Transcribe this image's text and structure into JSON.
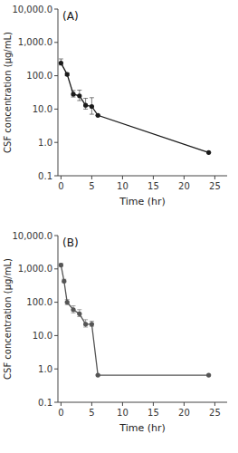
{
  "chart_data": [
    {
      "type": "line",
      "annotations": [
        "(A)"
      ],
      "xlabel": "Time (hr)",
      "ylabel": "CSF concentration (μg/mL)",
      "x": [
        0,
        1,
        2,
        3,
        4,
        5,
        6,
        24
      ],
      "series": [
        {
          "color": "#1a1a1a",
          "marker": "circle",
          "line_style": "solid",
          "values": [
            240,
            110,
            28,
            25,
            13,
            12,
            6.5,
            0.5
          ],
          "error_low": [
            30,
            10,
            5,
            7,
            3,
            5,
            0,
            0
          ],
          "error_high": [
            80,
            12,
            8,
            12,
            8,
            10,
            0,
            0
          ]
        }
      ],
      "log": "y",
      "grid": false,
      "xlim": [
        -0.5,
        27
      ],
      "xticks": [
        0,
        5,
        10,
        15,
        20,
        25
      ],
      "ylim": [
        0.1,
        10000
      ],
      "yticks": [
        0.1,
        {
          "value": 1.0,
          "label": "1.0"
        },
        {
          "value": 10.0,
          "label": "10.0"
        },
        {
          "value": 100.0,
          "label": "100.0"
        },
        {
          "value": 1000.0,
          "label": "1,000.0"
        },
        {
          "value": 10000.0,
          "label": "10,000.0"
        }
      ]
    },
    {
      "type": "line",
      "annotations": [
        "(B)"
      ],
      "xlabel": "Time (hr)",
      "ylabel": "CSF concentration (μg/mL)",
      "x": [
        0,
        0.5,
        1,
        2,
        3,
        4,
        5,
        6,
        24
      ],
      "series": [
        {
          "color": "#555555",
          "marker": "circle",
          "line_style": "solid",
          "values": [
            1300,
            430,
            100,
            60,
            45,
            22,
            22,
            0.65,
            0.65
          ],
          "error_low": [
            100,
            40,
            15,
            12,
            8,
            4,
            3,
            0,
            0
          ],
          "error_high": [
            150,
            60,
            20,
            18,
            15,
            8,
            5,
            0,
            0
          ]
        }
      ],
      "log": "y",
      "grid": false,
      "xlim": [
        -0.5,
        27
      ],
      "xticks": [
        0,
        5,
        10,
        15,
        20,
        25
      ],
      "ylim": [
        0.1,
        10000
      ],
      "yticks": [
        0.1,
        {
          "value": 1.0,
          "label": "1.0"
        },
        {
          "value": 10.0,
          "label": "10.0"
        },
        {
          "value": 100.0,
          "label": "100.0"
        },
        {
          "value": 1000.0,
          "label": "1,000.0"
        },
        {
          "value": 10000.0,
          "label": "10,000.0"
        }
      ]
    }
  ]
}
